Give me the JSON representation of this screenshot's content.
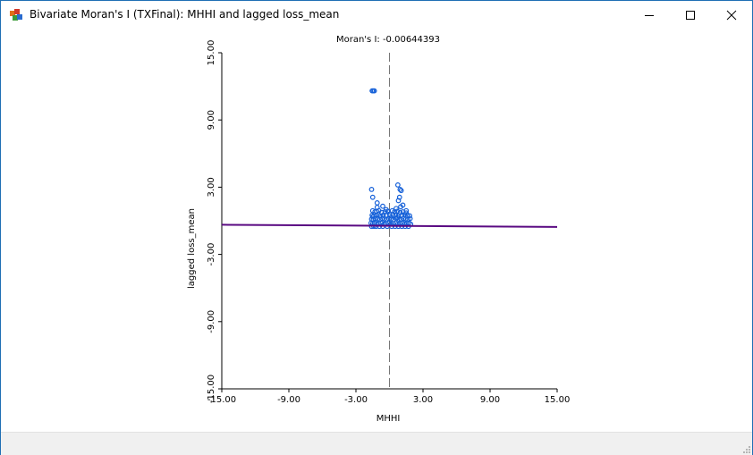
{
  "window": {
    "title": "Bivariate Moran's I (TXFinal): MHHI and lagged loss_mean",
    "icon": "geoda-app-icon",
    "controls": [
      "minimize-icon",
      "maximize-icon",
      "close-icon"
    ]
  },
  "chart_data": {
    "type": "scatter",
    "title": "Moran's I: -0.00644393",
    "xlabel": "MHHI",
    "ylabel": "lagged loss_mean",
    "xlim": [
      -15,
      15
    ],
    "ylim": [
      -15,
      15
    ],
    "x_ticks": [
      "-15.00",
      "-9.00",
      "-3.00",
      "3.00",
      "9.00",
      "15.00"
    ],
    "y_ticks": [
      "-15.00",
      "-9.00",
      "-3.00",
      "3.00",
      "9.00",
      "15.00"
    ],
    "grid": false,
    "reference_line_x": 0,
    "regression_line": {
      "slope": -0.00644393,
      "intercept": -0.45,
      "color": "#5a0a82"
    },
    "point_color": "#1560d8",
    "title_color": "#6a1a8a",
    "series": [
      {
        "x": [
          -1.55,
          -1.45,
          -1.35,
          -1.6,
          -1.5,
          0.75,
          0.95,
          1.05,
          0.9,
          -1.1,
          0.8,
          -1.5,
          -1.3,
          -1.15,
          -0.95,
          -0.7,
          -0.4,
          -0.15,
          0.25,
          0.45,
          0.7,
          0.95,
          1.2,
          1.5,
          -1.55,
          -1.4,
          -1.2,
          -1.0,
          -0.8,
          -0.55,
          -0.3,
          0.05,
          0.3,
          0.55,
          0.8,
          1.1,
          1.35,
          1.6,
          1.8,
          -1.6,
          -1.45,
          -1.25,
          -1.05,
          -0.85,
          -0.65,
          -0.45,
          -0.25,
          -0.05,
          0.15,
          0.35,
          0.6,
          0.85,
          1.05,
          1.25,
          1.45,
          1.65,
          1.85,
          -1.65,
          -1.5,
          -1.35,
          -1.15,
          -0.95,
          -0.75,
          -0.5,
          -0.3,
          -0.1,
          0.1,
          0.35,
          0.55,
          0.75,
          0.95,
          1.15,
          1.35,
          1.55,
          1.75,
          1.9,
          -1.6,
          -1.4,
          -1.2,
          -0.9,
          -0.6,
          -0.2,
          0.2,
          0.5,
          0.8,
          1.1,
          1.4,
          1.7,
          -1.5,
          -1.1,
          -0.6,
          0.0,
          0.6,
          1.0,
          1.5,
          0.7,
          1.2,
          -0.3
        ],
        "y": [
          11.6,
          11.6,
          11.6,
          2.8,
          2.1,
          3.2,
          2.8,
          2.7,
          2.1,
          1.6,
          1.8,
          0.9,
          0.8,
          0.85,
          0.9,
          0.75,
          0.8,
          0.85,
          0.9,
          0.8,
          0.85,
          0.75,
          0.8,
          0.9,
          0.5,
          0.45,
          0.5,
          0.55,
          0.45,
          0.5,
          0.5,
          0.45,
          0.55,
          0.5,
          0.45,
          0.5,
          0.55,
          0.5,
          0.45,
          0.15,
          0.1,
          0.2,
          0.15,
          0.1,
          0.2,
          0.15,
          0.1,
          0.2,
          0.15,
          0.1,
          0.2,
          0.15,
          0.1,
          0.2,
          0.15,
          0.1,
          0.2,
          -0.2,
          -0.25,
          -0.2,
          -0.3,
          -0.25,
          -0.2,
          -0.3,
          -0.25,
          -0.2,
          -0.3,
          -0.25,
          -0.2,
          -0.3,
          -0.25,
          -0.2,
          -0.3,
          -0.25,
          -0.2,
          -0.3,
          -0.5,
          -0.5,
          -0.5,
          -0.5,
          -0.5,
          -0.5,
          -0.5,
          -0.5,
          -0.5,
          -0.5,
          -0.5,
          -0.5,
          0.35,
          1.2,
          1.3,
          0.6,
          1.1,
          1.25,
          0.7,
          0.3,
          1.4,
          1.0
        ]
      }
    ]
  }
}
